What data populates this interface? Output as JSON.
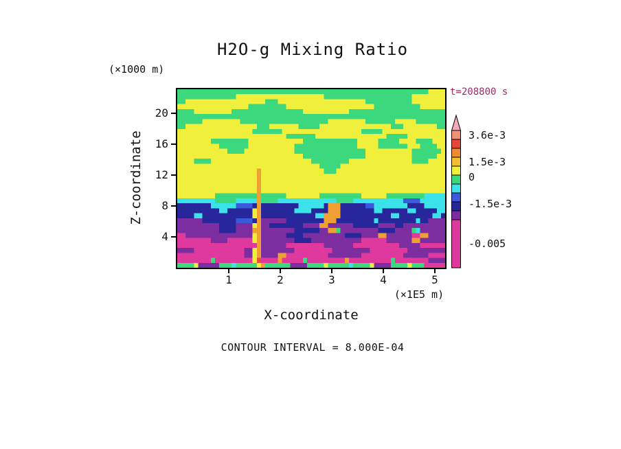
{
  "title": "H2O-g Mixing Ratio",
  "time_label": "t=208800 s",
  "contour_note": "CONTOUR INTERVAL = 8.000E-04",
  "colors": {
    "time_label": "#9B2B66",
    "axis": "#000000",
    "background": "#FFFFFF"
  },
  "axes": {
    "y_unit": "(×1000 m)",
    "y_label": "Z-coordinate",
    "y_ticks": [
      20,
      16,
      12,
      8,
      4
    ],
    "x_label": "X-coordinate",
    "x_unit": "(×1E5 m)",
    "x_ticks": [
      1,
      2,
      3,
      4,
      5
    ]
  },
  "colorbar": {
    "arrow_color": "#F2A8B8",
    "segments": [
      {
        "color": "#F09078",
        "h": 13
      },
      {
        "color": "#E84838",
        "h": 13
      },
      {
        "color": "#F08C30",
        "h": 13
      },
      {
        "color": "#F0C030",
        "h": 13
      },
      {
        "color": "#F0F03C",
        "h": 13
      },
      {
        "color": "#3BD87E",
        "h": 13
      },
      {
        "color": "#3CE2EA",
        "h": 13
      },
      {
        "color": "#3A5ADB",
        "h": 13
      },
      {
        "color": "#27279B",
        "h": 13
      },
      {
        "color": "#7C2EA0",
        "h": 13
      },
      {
        "color": "#E0399E",
        "h": 70
      }
    ],
    "labels": [
      {
        "text": "3.6e-3",
        "y": 197
      },
      {
        "text": "1.5e-3",
        "y": 236
      },
      {
        "text": "0",
        "y": 258
      },
      {
        "text": "-1.5e-3",
        "y": 297
      },
      {
        "text": "-0.005",
        "y": 355
      }
    ]
  },
  "chart_data": {
    "type": "heatmap",
    "title": "H2O-g Mixing Ratio",
    "field": "H2O-g mixing ratio filled-contour cross-section",
    "time_s": 208800,
    "contour_interval": 0.0008,
    "x_axis": {
      "label": "X-coordinate",
      "unit": "×1E5 m",
      "range": [
        0,
        5.2
      ],
      "ticks": [
        1,
        2,
        3,
        4,
        5
      ]
    },
    "z_axis": {
      "label": "Z-coordinate",
      "unit": "×1000 m",
      "range": [
        0,
        23.1
      ],
      "ticks": [
        4,
        8,
        12,
        16,
        20
      ]
    },
    "colorbar_labels": [
      "3.6e-3",
      "1.5e-3",
      "0",
      "-1.5e-3",
      "-0.005"
    ],
    "palette": {
      "g": "#3BD87E",
      "y": "#F0F03C",
      "c": "#3CE2EA",
      "b": "#3A5ADB",
      "n": "#27279B",
      "p": "#7C2EA0",
      "m": "#E0399E",
      "o": "#F0A032",
      "r": "#E8503A"
    },
    "grid_cols": 64,
    "grid_rows": 36,
    "rows_rle": [
      "g60 y4",
      "g14 y21 g21 y8",
      "g2 y19 g3 y21 g11 y8",
      "y17 g9 y21 g11 y6",
      "g4 y9 g17 y11 g23",
      "g64",
      "g6 y9 g21 y9 g7 y5 g7",
      "g2 y17 g3 y7 g5 y17 g3 y8 g2",
      "y18 g7 y19 g5 y15",
      "y26 g7 y17 g5 y9",
      "y8 g9 y13 g13 y5 g5 y4 g4 y3",
      "y10 g7 y11 g15 y5 g7 y3 g4 y2",
      "y12 g4 y12 g17 y11 g7 y1",
      "y30 g15 y11 g6 y2",
      "y4 g4 y24 g9 y15 g4 y4",
      "y34 g5 y25",
      "y19 o1 y15 g3 y26",
      "y19 o1 y44",
      "y19 o1 y44",
      "y19 o1 y44",
      "y19 o1 y44",
      "y9 g10 o1 g6 y8 g10 y6 g9 c5",
      "c9 g5 c5 o1 g4 c14 g4 c12 b4 c6",
      "n8 c6 b4 n1 o1 n9 c6 n1 o3 n6 b2 c8 n4 c5",
      "n10 c2 n6 y1 o1 n8 c4 n4 o3 n8 c2 n6 c2 n5 c2",
      "n4 c2 n12 y1 o1 n13 c2 o4 n12 c2 n8 c2 n1",
      "p6 n8 b4 n1 o1 p6 n9 o3 n9 c1 n9 c1 n2 p4",
      "p10 n4 p4 y1 o1 p2 n8 p4 o2 p6 n6 p4 n2 p10",
      "p10 n4 p4 o2 p8 n6 p2 o2 g1 p9 n4 p4 g1 c1 p6",
      "m2 p16 y1 o1 p6 n4 p10 n4 p4 o2 p6 m2 o2 p4",
      "m8 p4 m6 y1 o1 p8 n4 p12 m6 p6 o2 p6",
      "m19 o1 p6 m9 p7 m11 p5 m6",
      "p4 m12 p2 y1 o1 p8 m9 p9 m9 p9",
      "m16 p2 y1 o1 p4 o2 m10 p8 m10 p6 m4",
      "m8 g1 m9 y1 r1 m4 o1 m5 g1 m9 o1 m10 g1 m8 p4",
      "g4 y1 p5 g3 c1 g5 y1 o1 g6 p4 g4 y1 g5 c1 g4 y1 p4 g4 y1 g3 m5"
    ]
  }
}
